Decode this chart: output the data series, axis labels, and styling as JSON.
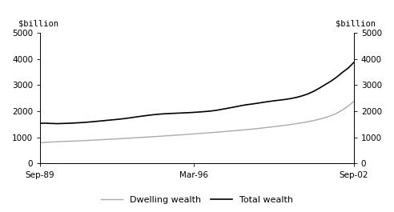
{
  "ylabel_left": "$billion",
  "ylabel_right": "$billion",
  "xtick_labels": [
    "Sep-89",
    "Mar-96",
    "Sep-02"
  ],
  "ylim": [
    0,
    5000
  ],
  "yticks": [
    0,
    1000,
    2000,
    3000,
    4000,
    5000
  ],
  "legend_labels": [
    "Dwelling wealth",
    "Total wealth"
  ],
  "dwelling_color": "#aaaaaa",
  "total_color": "#000000",
  "background_color": "#ffffff",
  "dwelling_wealth": [
    800,
    815,
    825,
    838,
    848,
    855,
    863,
    872,
    882,
    893,
    905,
    917,
    928,
    940,
    952,
    965,
    978,
    992,
    1005,
    1018,
    1032,
    1046,
    1060,
    1075,
    1090,
    1105,
    1120,
    1136,
    1152,
    1168,
    1185,
    1202,
    1220,
    1238,
    1256,
    1275,
    1295,
    1315,
    1338,
    1362,
    1387,
    1413,
    1440,
    1468,
    1498,
    1530,
    1565,
    1603,
    1648,
    1700,
    1762,
    1835,
    1925,
    2050,
    2200,
    2380
  ],
  "total_wealth": [
    1540,
    1545,
    1535,
    1528,
    1535,
    1542,
    1553,
    1565,
    1580,
    1598,
    1618,
    1638,
    1660,
    1680,
    1702,
    1728,
    1758,
    1790,
    1820,
    1848,
    1872,
    1893,
    1908,
    1918,
    1928,
    1938,
    1948,
    1960,
    1975,
    1992,
    2012,
    2042,
    2082,
    2122,
    2162,
    2205,
    2245,
    2275,
    2305,
    2340,
    2372,
    2402,
    2428,
    2455,
    2490,
    2535,
    2595,
    2670,
    2770,
    2892,
    3025,
    3155,
    3310,
    3490,
    3650,
    3870
  ],
  "n_points": 56,
  "x_tick_positions": [
    0.0,
    0.491,
    1.0
  ],
  "figsize": [
    4.92,
    2.65
  ],
  "dpi": 100
}
